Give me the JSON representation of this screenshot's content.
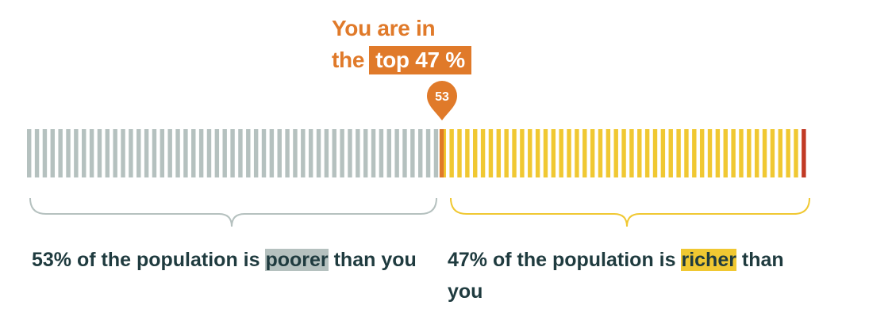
{
  "headline": {
    "line1": "You are in",
    "line2_prefix": "the",
    "line2_highlight": "top 47 %"
  },
  "marker": {
    "label": "53",
    "color": "#e07a2a"
  },
  "chart_data": {
    "type": "bar",
    "title": "",
    "xlabel": "",
    "ylabel": "",
    "total_segments": 100,
    "position_percentile": 53,
    "segments": [
      {
        "name": "poorer",
        "from": 0,
        "to": 53,
        "color": "#b5c1bf"
      },
      {
        "name": "you",
        "at": 53,
        "color": "#e07a2a"
      },
      {
        "name": "richer",
        "from": 53,
        "to": 99,
        "color": "#f0c832"
      },
      {
        "name": "top",
        "from": 99,
        "to": 100,
        "color": "#c13a25"
      }
    ]
  },
  "captions": {
    "left": {
      "prefix": "53% of the population is ",
      "highlight": "poorer",
      "suffix": " than you"
    },
    "right": {
      "prefix": "47% of the population is ",
      "highlight": "richer",
      "suffix": " than you"
    }
  },
  "colors": {
    "poorer": "#b5c1bf",
    "richer": "#f0c832",
    "accent": "#e07a2a",
    "top": "#c13a25",
    "text": "#1f3b3f"
  }
}
